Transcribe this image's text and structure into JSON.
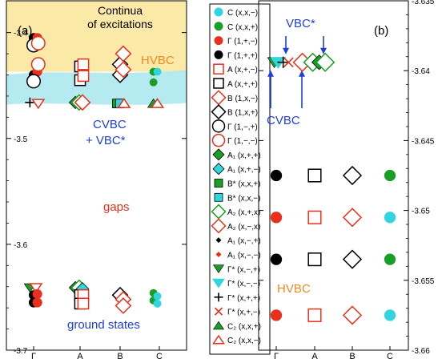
{
  "chart_data": [
    {
      "panel_label": "(a)",
      "type": "scatter",
      "ylim": [
        -3.7,
        -3.37
      ],
      "yticks": [
        "-3.4",
        "-3.5",
        "-3.6",
        "-3.7"
      ],
      "ytick_values": [
        -3.4,
        -3.5,
        -3.6,
        -3.7
      ],
      "categories": [
        "Γ",
        "A",
        "B",
        "C"
      ],
      "annotations": {
        "continua": [
          "Continua",
          "of excitations"
        ],
        "hvbc": "HVBC",
        "cvbc": "CVBC",
        "cvbc_vbc": "+ VBC*",
        "gaps": "gaps",
        "ground": "ground states"
      },
      "colors": {
        "black": "#000000",
        "red": "#e8301c",
        "green": "#1a9e26",
        "cyan": "#30d5e0",
        "orange": "#f08a20",
        "blue": "#1f3fd8",
        "continua_fill": "#fbe9a8",
        "cvbc_fill": "#a9e6ee"
      },
      "points": [
        {
          "x": 0,
          "y": -3.405,
          "marker": "circle_filled",
          "color": "black"
        },
        {
          "x": 0.08,
          "y": -3.405,
          "marker": "circle_filled",
          "color": "red"
        },
        {
          "x": 0,
          "y": -3.412,
          "marker": "circle_open",
          "color": "black"
        },
        {
          "x": 0.1,
          "y": -3.41,
          "marker": "circle_open",
          "color": "red"
        },
        {
          "x": 0,
          "y": -3.44,
          "marker": "circle_filled",
          "color": "black"
        },
        {
          "x": 0.08,
          "y": -3.437,
          "marker": "circle_filled",
          "color": "red"
        },
        {
          "x": 0,
          "y": -3.446,
          "marker": "circle_open",
          "color": "black"
        },
        {
          "x": 0.1,
          "y": -3.43,
          "marker": "circle_open",
          "color": "red"
        },
        {
          "x": -0.08,
          "y": -3.466,
          "marker": "plus",
          "color": "black"
        },
        {
          "x": 0.1,
          "y": -3.467,
          "marker": "tri_down_open",
          "color": "red"
        },
        {
          "x": 1,
          "y": -3.432,
          "marker": "square_open",
          "color": "black"
        },
        {
          "x": 1.08,
          "y": -3.43,
          "marker": "square_open",
          "color": "red"
        },
        {
          "x": 1,
          "y": -3.445,
          "marker": "square_open",
          "color": "black"
        },
        {
          "x": 1.08,
          "y": -3.441,
          "marker": "square_open",
          "color": "red"
        },
        {
          "x": 0.9,
          "y": -3.466,
          "marker": "diamond_filled",
          "color": "green"
        },
        {
          "x": 0.98,
          "y": -3.466,
          "marker": "diamond_open",
          "color": "green"
        },
        {
          "x": 1.06,
          "y": -3.466,
          "marker": "diamond_open",
          "color": "red"
        },
        {
          "x": 2,
          "y": -3.43,
          "marker": "diamond_open",
          "color": "black"
        },
        {
          "x": 2.08,
          "y": -3.42,
          "marker": "diamond_open",
          "color": "red"
        },
        {
          "x": 2,
          "y": -3.44,
          "marker": "diamond_open",
          "color": "black"
        },
        {
          "x": 2.08,
          "y": -3.435,
          "marker": "diamond_open",
          "color": "red"
        },
        {
          "x": 1.92,
          "y": -3.467,
          "marker": "square_filled",
          "color": "green"
        },
        {
          "x": 2.0,
          "y": -3.467,
          "marker": "square_filled",
          "color": "cyan"
        },
        {
          "x": 2.1,
          "y": -3.467,
          "marker": "tri_up_open",
          "color": "red"
        },
        {
          "x": 2.85,
          "y": -3.437,
          "marker": "dot",
          "color": "green"
        },
        {
          "x": 2.95,
          "y": -3.437,
          "marker": "dot",
          "color": "cyan"
        },
        {
          "x": 2.85,
          "y": -3.447,
          "marker": "dot",
          "color": "green"
        },
        {
          "x": 2.85,
          "y": -3.467,
          "marker": "tri_up_filled",
          "color": "green"
        },
        {
          "x": 2.95,
          "y": -3.467,
          "marker": "tri_up_open",
          "color": "red"
        },
        {
          "x": -0.08,
          "y": -3.641,
          "marker": "tri_down_filled",
          "color": "green"
        },
        {
          "x": 0.05,
          "y": -3.641,
          "marker": "tri_down_open",
          "color": "red"
        },
        {
          "x": 0,
          "y": -3.648,
          "marker": "circle_filled",
          "color": "black"
        },
        {
          "x": 0.08,
          "y": -3.647,
          "marker": "circle_filled",
          "color": "red"
        },
        {
          "x": 0,
          "y": -3.655,
          "marker": "circle_filled",
          "color": "black"
        },
        {
          "x": 0.08,
          "y": -3.655,
          "marker": "circle_filled",
          "color": "red"
        },
        {
          "x": 0.9,
          "y": -3.641,
          "marker": "diamond_filled",
          "color": "green"
        },
        {
          "x": 0.98,
          "y": -3.641,
          "marker": "diamond_open",
          "color": "green"
        },
        {
          "x": 1.06,
          "y": -3.642,
          "marker": "diamond_filled",
          "color": "cyan"
        },
        {
          "x": 1,
          "y": -3.648,
          "marker": "square_open",
          "color": "black"
        },
        {
          "x": 1.08,
          "y": -3.648,
          "marker": "square_open",
          "color": "red"
        },
        {
          "x": 1,
          "y": -3.656,
          "marker": "square_open",
          "color": "black"
        },
        {
          "x": 1.08,
          "y": -3.656,
          "marker": "square_open",
          "color": "red"
        },
        {
          "x": 2,
          "y": -3.648,
          "marker": "diamond_open",
          "color": "black"
        },
        {
          "x": 2.08,
          "y": -3.652,
          "marker": "diamond_open",
          "color": "red"
        },
        {
          "x": 2.08,
          "y": -3.658,
          "marker": "diamond_open",
          "color": "red"
        },
        {
          "x": 2.85,
          "y": -3.646,
          "marker": "dot",
          "color": "green"
        },
        {
          "x": 2.85,
          "y": -3.653,
          "marker": "dot",
          "color": "green"
        },
        {
          "x": 2.95,
          "y": -3.649,
          "marker": "dot",
          "color": "cyan"
        },
        {
          "x": 2.95,
          "y": -3.656,
          "marker": "dot",
          "color": "cyan"
        }
      ]
    },
    {
      "panel_label": "(b)",
      "type": "scatter",
      "ylim": [
        -3.66,
        -3.635
      ],
      "yticks": [
        "-3.635",
        "-3.64",
        "-3.645",
        "-3.65",
        "-3.655",
        "-3.66"
      ],
      "ytick_values": [
        -3.635,
        -3.64,
        -3.645,
        -3.65,
        -3.655,
        -3.66
      ],
      "categories": [
        "Γ",
        "A",
        "B",
        "C"
      ],
      "annotations": {
        "vbc": "VBC*",
        "cvbc": "CVBC",
        "hvbc": "HVBC"
      },
      "points": [
        {
          "x": -0.05,
          "y": -3.6394,
          "marker": "tri_down_filled",
          "color": "green"
        },
        {
          "x": 0.05,
          "y": -3.6394,
          "marker": "tri_down_open",
          "color": "cyan"
        },
        {
          "x": 0.18,
          "y": -3.6394,
          "marker": "plus",
          "color": "black"
        },
        {
          "x": 0.32,
          "y": -3.6394,
          "marker": "cross",
          "color": "red"
        },
        {
          "x": 0.68,
          "y": -3.6394,
          "marker": "diamond_open",
          "color": "red"
        },
        {
          "x": 0.95,
          "y": -3.6394,
          "marker": "diamond_open",
          "color": "green"
        },
        {
          "x": 1.12,
          "y": -3.6394,
          "marker": "diamond_filled",
          "color": "green"
        },
        {
          "x": 1.28,
          "y": -3.6394,
          "marker": "diamond_open",
          "color": "green"
        },
        {
          "x": 0,
          "y": -3.6475,
          "marker": "circle_filled",
          "color": "black"
        },
        {
          "x": 1,
          "y": -3.6475,
          "marker": "square_open",
          "color": "black"
        },
        {
          "x": 2,
          "y": -3.6475,
          "marker": "diamond_open",
          "color": "black"
        },
        {
          "x": 3,
          "y": -3.6475,
          "marker": "circle_filled",
          "color": "green"
        },
        {
          "x": 0,
          "y": -3.6505,
          "marker": "circle_filled",
          "color": "red"
        },
        {
          "x": 1,
          "y": -3.6505,
          "marker": "square_open",
          "color": "red"
        },
        {
          "x": 2,
          "y": -3.6505,
          "marker": "diamond_open",
          "color": "red"
        },
        {
          "x": 3,
          "y": -3.6505,
          "marker": "circle_filled",
          "color": "cyan"
        },
        {
          "x": 0,
          "y": -3.6535,
          "marker": "circle_filled",
          "color": "black"
        },
        {
          "x": 1,
          "y": -3.6535,
          "marker": "square_open",
          "color": "black"
        },
        {
          "x": 2,
          "y": -3.6535,
          "marker": "diamond_open",
          "color": "black"
        },
        {
          "x": 3,
          "y": -3.6535,
          "marker": "circle_filled",
          "color": "green"
        },
        {
          "x": 0,
          "y": -3.6575,
          "marker": "circle_filled",
          "color": "red"
        },
        {
          "x": 1,
          "y": -3.6575,
          "marker": "square_open",
          "color": "red"
        },
        {
          "x": 2,
          "y": -3.6575,
          "marker": "diamond_open",
          "color": "red"
        },
        {
          "x": 3,
          "y": -3.6575,
          "marker": "circle_filled",
          "color": "cyan"
        }
      ]
    }
  ],
  "legend": [
    {
      "marker": "circle_filled",
      "color": "cyan",
      "label": "C (x,x,−)"
    },
    {
      "marker": "circle_filled",
      "color": "green",
      "label": "C (x,x,+)"
    },
    {
      "marker": "circle_filled",
      "color": "red",
      "label": "Γ (1,+,−)"
    },
    {
      "marker": "circle_filled",
      "color": "black",
      "label": "Γ (1,+,+)"
    },
    {
      "marker": "square_open",
      "color": "red",
      "label": "A (x,+,−)"
    },
    {
      "marker": "square_open",
      "color": "black",
      "label": "A (x,+,+)"
    },
    {
      "marker": "diamond_open",
      "color": "red",
      "label": "B (1,x,−)"
    },
    {
      "marker": "diamond_open",
      "color": "black",
      "label": "B (1,x,+)"
    },
    {
      "marker": "circle_open",
      "color": "black",
      "label": "Γ (1,−,+)"
    },
    {
      "marker": "circle_open",
      "color": "red",
      "label": "Γ (1,−,−)"
    },
    {
      "marker": "diamond_filled",
      "color": "green",
      "label": "A₁ (x,+,+)"
    },
    {
      "marker": "diamond_filled",
      "color": "cyan",
      "label": "A₁ (x,+,−)"
    },
    {
      "marker": "square_filled",
      "color": "green",
      "label": "B* (x,x,+)"
    },
    {
      "marker": "square_filled",
      "color": "cyan",
      "label": "B* (x,x,−)"
    },
    {
      "marker": "diamond_open",
      "color": "green",
      "label": "A₂ (x,+,x)"
    },
    {
      "marker": "diamond_open",
      "color": "red",
      "label": "A₂ (x,−,x)"
    },
    {
      "marker": "small_diamond",
      "color": "black",
      "label": "A₁ (x,−,+)"
    },
    {
      "marker": "small_diamond",
      "color": "red",
      "label": "A₁ (x,−,−)"
    },
    {
      "marker": "tri_down_filled",
      "color": "green",
      "label": "Γ* (x,−,+)"
    },
    {
      "marker": "tri_down_open",
      "color": "cyan",
      "label": "Γ* (x,−,−)"
    },
    {
      "marker": "plus",
      "color": "black",
      "label": "Γ* (x,+,+)"
    },
    {
      "marker": "cross",
      "color": "red",
      "label": "Γ* (x,+,−)"
    },
    {
      "marker": "tri_up_filled",
      "color": "green",
      "label": "C₂ (x,x,+)"
    },
    {
      "marker": "tri_up_open",
      "color": "red",
      "label": "C₂ (x,x,−)"
    }
  ]
}
